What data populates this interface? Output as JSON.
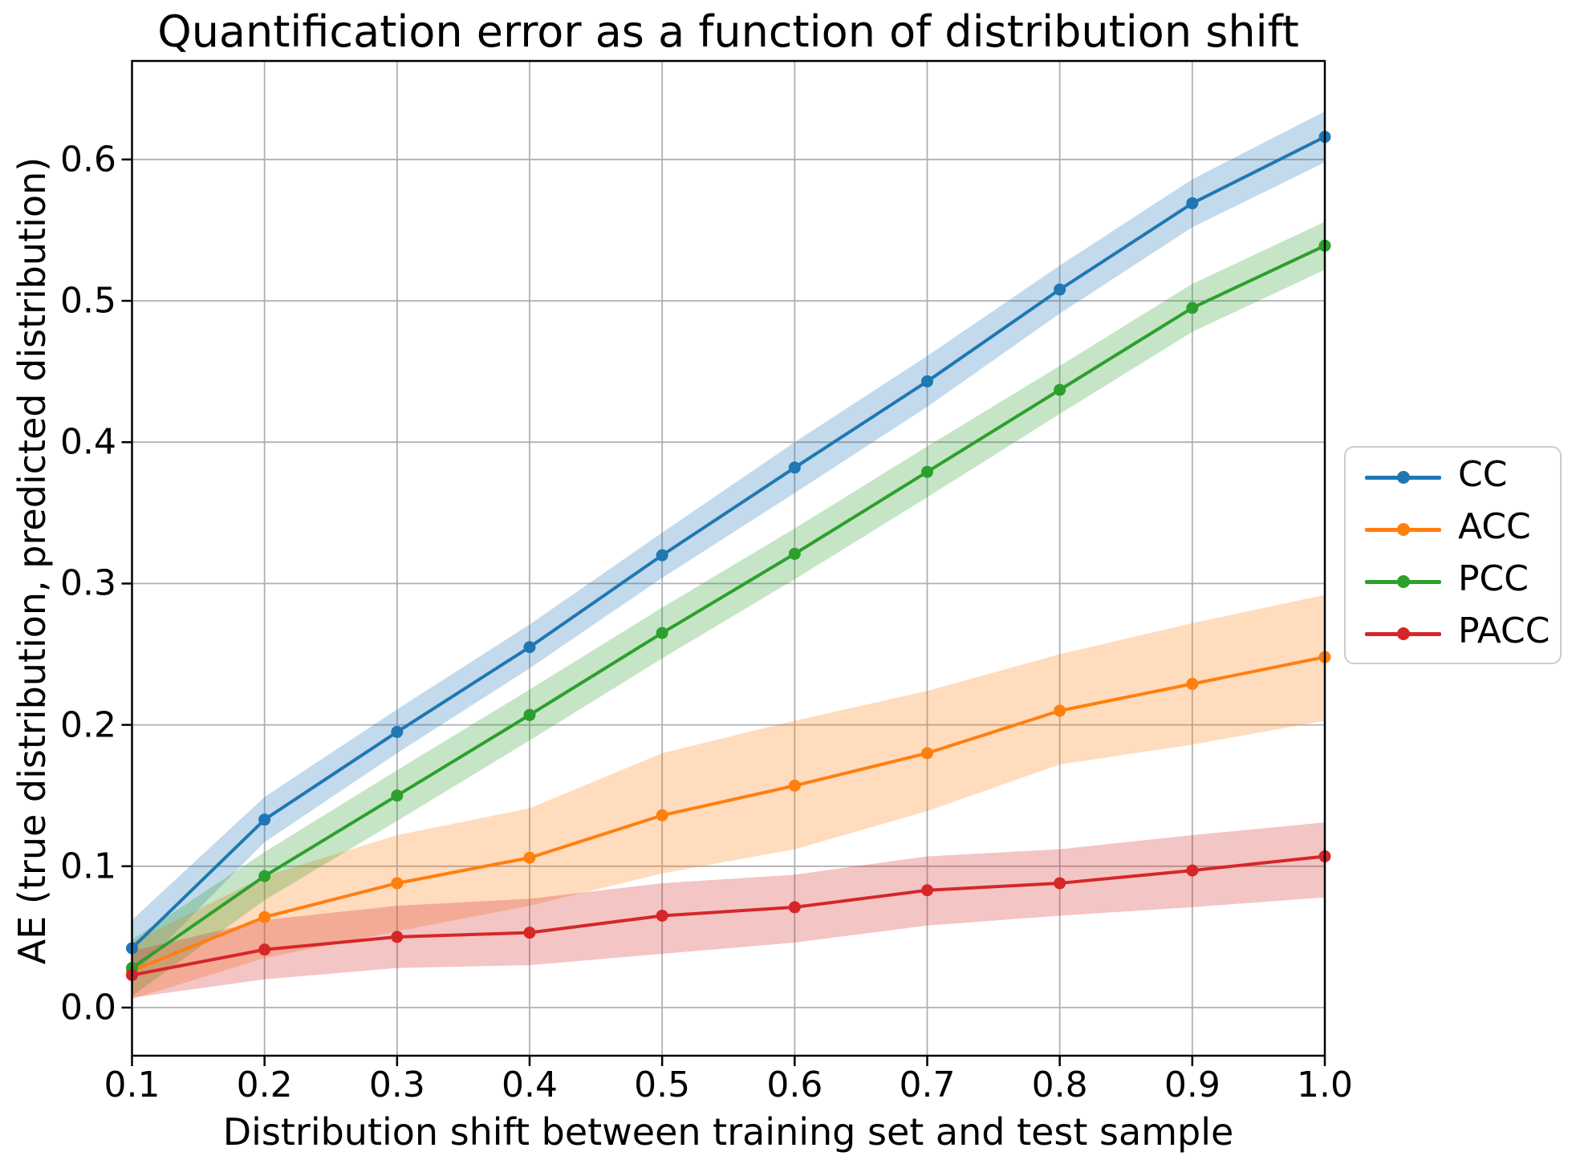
{
  "chart_data": {
    "type": "line",
    "title": "Quantification error as a function of distribution shift",
    "xlabel": "Distribution shift between training set and test sample",
    "ylabel": "AE (true distribution, predicted distribution)",
    "x": [
      0.1,
      0.2,
      0.3,
      0.4,
      0.5,
      0.6,
      0.7,
      0.8,
      0.9,
      1.0
    ],
    "x_tick_labels": [
      "0.1",
      "0.2",
      "0.3",
      "0.4",
      "0.5",
      "0.6",
      "0.7",
      "0.8",
      "0.9",
      "1.0"
    ],
    "y_ticks": [
      0.0,
      0.1,
      0.2,
      0.3,
      0.4,
      0.5,
      0.6
    ],
    "y_tick_labels": [
      "0.0",
      "0.1",
      "0.2",
      "0.3",
      "0.4",
      "0.5",
      "0.6"
    ],
    "xlim": [
      0.1,
      1.0
    ],
    "ylim": [
      -0.034,
      0.67
    ],
    "grid": true,
    "grid_color": "#b0b0b0",
    "spine_color": "#000000",
    "background": "#ffffff",
    "band_alpha": 0.27,
    "legend_position": "outside-right",
    "series": [
      {
        "name": "CC",
        "color": "#1f77b4",
        "values": [
          0.042,
          0.133,
          0.195,
          0.255,
          0.32,
          0.382,
          0.443,
          0.508,
          0.569,
          0.616
        ],
        "band_lower": [
          0.022,
          0.117,
          0.18,
          0.24,
          0.304,
          0.364,
          0.425,
          0.491,
          0.552,
          0.598
        ],
        "band_upper": [
          0.062,
          0.149,
          0.211,
          0.271,
          0.336,
          0.4,
          0.461,
          0.525,
          0.586,
          0.634
        ]
      },
      {
        "name": "ACC",
        "color": "#ff7f0e",
        "values": [
          0.026,
          0.064,
          0.088,
          0.106,
          0.136,
          0.157,
          0.18,
          0.21,
          0.229,
          0.248
        ],
        "band_lower": [
          0.006,
          0.035,
          0.054,
          0.072,
          0.095,
          0.112,
          0.139,
          0.172,
          0.186,
          0.203
        ],
        "band_upper": [
          0.046,
          0.093,
          0.122,
          0.141,
          0.18,
          0.203,
          0.224,
          0.25,
          0.272,
          0.292
        ]
      },
      {
        "name": "PCC",
        "color": "#2ca02c",
        "values": [
          0.028,
          0.093,
          0.15,
          0.207,
          0.265,
          0.321,
          0.379,
          0.437,
          0.495,
          0.539
        ],
        "band_lower": [
          0.008,
          0.076,
          0.132,
          0.189,
          0.247,
          0.303,
          0.361,
          0.42,
          0.478,
          0.522
        ],
        "band_upper": [
          0.048,
          0.11,
          0.168,
          0.225,
          0.283,
          0.339,
          0.397,
          0.454,
          0.512,
          0.556
        ]
      },
      {
        "name": "PACC",
        "color": "#d62728",
        "values": [
          0.023,
          0.041,
          0.05,
          0.053,
          0.065,
          0.071,
          0.083,
          0.088,
          0.097,
          0.107
        ],
        "band_lower": [
          0.007,
          0.02,
          0.028,
          0.03,
          0.038,
          0.046,
          0.058,
          0.065,
          0.071,
          0.078
        ],
        "band_upper": [
          0.04,
          0.062,
          0.072,
          0.077,
          0.088,
          0.094,
          0.107,
          0.112,
          0.122,
          0.131
        ]
      }
    ]
  }
}
